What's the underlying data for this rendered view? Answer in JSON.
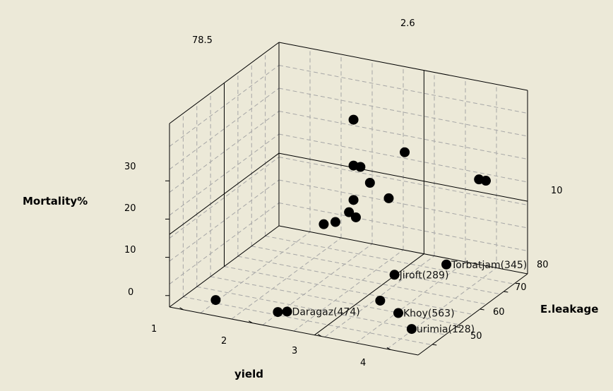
{
  "chart_data": {
    "type": "scatter",
    "subtype": "3d-scatter",
    "x_label": "yield",
    "y_label": "E.leakage",
    "z_label": "Mortality%",
    "x_ticks": [
      "1",
      "2",
      "3",
      "4"
    ],
    "y_ticks": [
      "50",
      "60",
      "70",
      "80"
    ],
    "z_ticks": [
      "0",
      "10",
      "20",
      "30"
    ],
    "corner_labels": [
      "78.5",
      "2.6",
      "10"
    ],
    "grid": true,
    "colors": {
      "background": "#ece9d8",
      "point": "#000000"
    },
    "points": [
      {
        "x": 1.4,
        "y": 46,
        "z": 0,
        "label": ""
      },
      {
        "x": 2.3,
        "y": 46,
        "z": 0,
        "label": ""
      },
      {
        "x": 2.4,
        "y": 47,
        "z": 0,
        "label": "Daragaz(474)"
      },
      {
        "x": 3.3,
        "y": 60,
        "z": 0,
        "label": ""
      },
      {
        "x": 3.7,
        "y": 56,
        "z": 0,
        "label": "Khoy(563)"
      },
      {
        "x": 4.1,
        "y": 50,
        "z": 0,
        "label": "urimia(128)"
      },
      {
        "x": 3.3,
        "y": 66,
        "z": 4,
        "label": "Jiroft(289)"
      },
      {
        "x": 3.5,
        "y": 82,
        "z": 0,
        "label": "Torbatjam(345)"
      },
      {
        "x": 2.0,
        "y": 74,
        "z": 9,
        "label": ""
      },
      {
        "x": 2.1,
        "y": 76,
        "z": 9,
        "label": ""
      },
      {
        "x": 2.4,
        "y": 73,
        "z": 14,
        "label": ""
      },
      {
        "x": 2.5,
        "y": 73,
        "z": 13,
        "label": ""
      },
      {
        "x": 2.5,
        "y": 72,
        "z": 18,
        "label": ""
      },
      {
        "x": 2.6,
        "y": 76,
        "z": 21,
        "label": ""
      },
      {
        "x": 2.7,
        "y": 81,
        "z": 15,
        "label": ""
      },
      {
        "x": 2.5,
        "y": 72,
        "z": 27,
        "label": ""
      },
      {
        "x": 2.6,
        "y": 72,
        "z": 27,
        "label": ""
      },
      {
        "x": 3.0,
        "y": 79,
        "z": 29,
        "label": ""
      },
      {
        "x": 2.5,
        "y": 72,
        "z": 39,
        "label": ""
      },
      {
        "x": 3.8,
        "y": 87,
        "z": 21,
        "label": ""
      },
      {
        "x": 3.9,
        "y": 87,
        "z": 21,
        "label": ""
      }
    ]
  }
}
